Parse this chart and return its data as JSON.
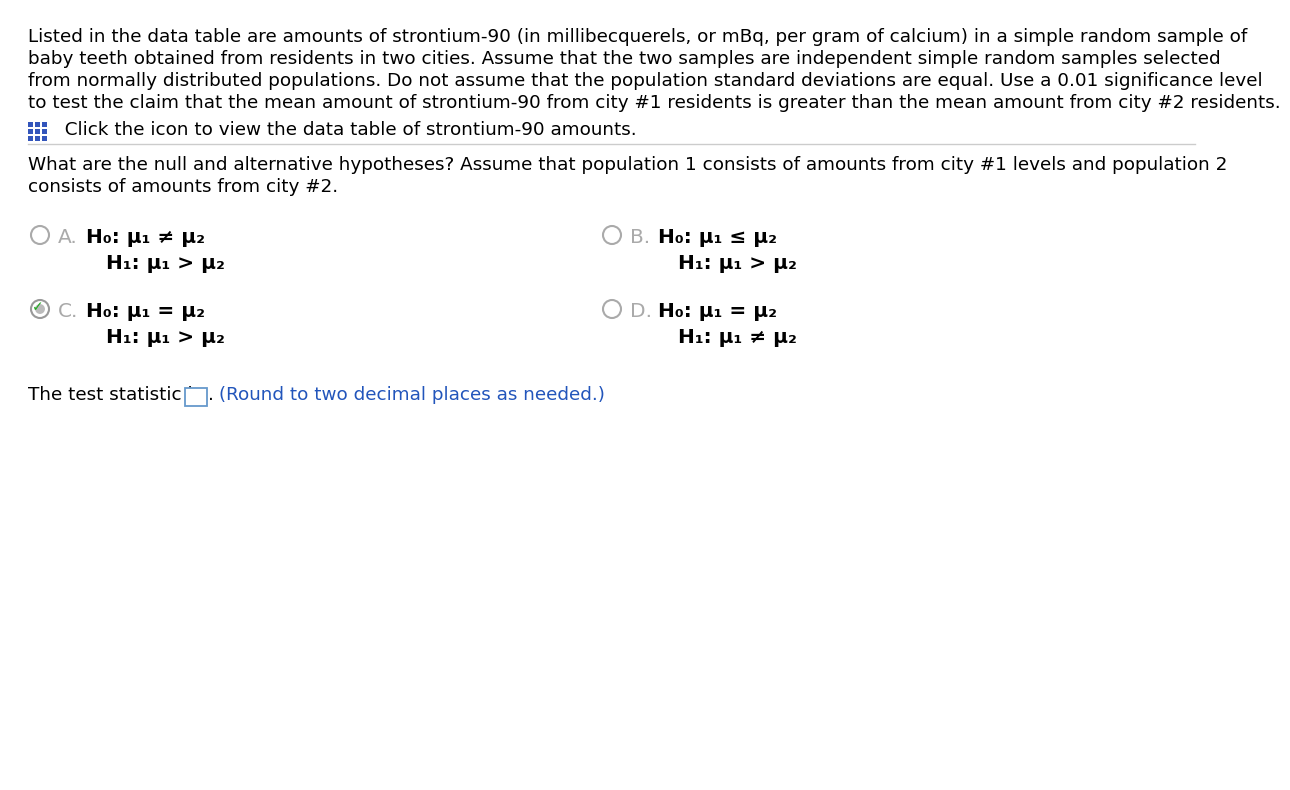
{
  "background_color": "#ffffff",
  "paragraph1_lines": [
    "Listed in the data table are amounts of strontium-90 (in millibecquerels, or mBq, per gram of calcium) in a simple random sample of",
    "baby teeth obtained from residents in two cities. Assume that the two samples are independent simple random samples selected",
    "from normally distributed populations. Do not assume that the population standard deviations are equal. Use a 0.01 significance level",
    "to test the claim that the mean amount of strontium-90 from city #1 residents is greater than the mean amount from city #2 residents."
  ],
  "icon_text": "  Click the icon to view the data table of strontium-90 amounts.",
  "question_lines": [
    "What are the null and alternative hypotheses? Assume that population 1 consists of amounts from city #1 levels and population 2",
    "consists of amounts from city #2."
  ],
  "option_A_label": "A.",
  "option_A_H0": "H₀: μ₁ ≠ μ₂",
  "option_A_H1": "H₁: μ₁ > μ₂",
  "option_B_label": "B.",
  "option_B_H0": "H₀: μ₁ ≤ μ₂",
  "option_B_H1": "H₁: μ₁ > μ₂",
  "option_C_label": "C.",
  "option_C_H0": "H₀: μ₁ = μ₂",
  "option_C_H1": "H₁: μ₁ > μ₂",
  "option_D_label": "D.",
  "option_D_H0": "H₀: μ₁ = μ₂",
  "option_D_H1": "H₁: μ₁ ≠ μ₂",
  "bottom_text_black": "The test statistic is",
  "bottom_text_dot": ".",
  "bottom_text_blue": " (Round to two decimal places as needed.)",
  "text_color": "#000000",
  "gray_color": "#aaaaaa",
  "blue_color": "#2255bb",
  "icon_color": "#3355bb",
  "separator_color": "#cccccc",
  "selected_ring_color": "#aaaaaa",
  "selected_fill_color": "#aaaaaa",
  "check_color": "#22aa22",
  "box_edge_color": "#6699cc",
  "font_size_body": 13.2,
  "font_size_options": 14.5,
  "font_size_bottom": 13.2
}
